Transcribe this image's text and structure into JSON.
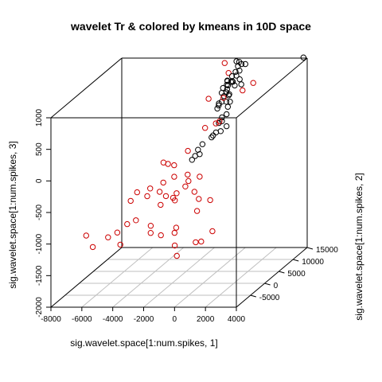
{
  "chart_data": {
    "type": "scatter",
    "title": "wavelet Tr & colored by kmeans in 10D space",
    "xlabel": "sig.wavelet.space[1:num.spikes, 1]",
    "ylabel": "sig.wavelet.space[1:num.spikes, 2]",
    "zlabel": "sig.wavelet.space[1:num.spikes, 3]",
    "xlim": [
      -8000,
      4000
    ],
    "ylim": [
      -10000,
      15000
    ],
    "zlim": [
      -2000,
      1000
    ],
    "x_ticks": [
      "-8000",
      "-6000",
      "-4000",
      "-2000",
      "0",
      "2000",
      "4000"
    ],
    "y_ticks": [
      "-5000",
      "0",
      "5000",
      "10000",
      "15000"
    ],
    "z_ticks": [
      "-2000",
      "-1500",
      "-1000",
      "-500",
      "0",
      "500",
      "1000"
    ],
    "grid": true,
    "colors": {
      "cluster_1": "#cc0000",
      "cluster_2": "#000000",
      "box": "#000000",
      "grid": "#bfbfbf"
    },
    "series": [
      {
        "color": "#cc0000",
        "points": [
          [
            -5840,
            -7000,
            -1160
          ],
          [
            -6470,
            -5900,
            -1020
          ],
          [
            -5400,
            -4000,
            -1120
          ],
          [
            -4240,
            -6000,
            -1160
          ],
          [
            -4880,
            -3600,
            -1060
          ],
          [
            -4260,
            -3500,
            -930
          ],
          [
            -3600,
            -4000,
            -850
          ],
          [
            -2750,
            -3400,
            -960
          ],
          [
            -4070,
            -1000,
            -520
          ],
          [
            -1800,
            -5000,
            -1050
          ],
          [
            -700,
            -6100,
            -1170
          ],
          [
            -1250,
            -2600,
            -1020
          ],
          [
            600,
            -5800,
            -1130
          ],
          [
            -1030,
            6400,
            220
          ],
          [
            -2780,
            1200,
            -450
          ],
          [
            -1540,
            -1500,
            -630
          ],
          [
            -1100,
            8000,
            620
          ],
          [
            -950,
            -200,
            -270
          ],
          [
            -2040,
            1000,
            -350
          ],
          [
            -1300,
            -2200,
            -490
          ],
          [
            -4800,
            700,
            -720
          ],
          [
            -1300,
            900,
            -500
          ],
          [
            -3600,
            0,
            -620
          ],
          [
            -1830,
            4700,
            -80
          ],
          [
            -480,
            7200,
            260
          ],
          [
            -3520,
            600,
            -520
          ],
          [
            -1080,
            800,
            -410
          ],
          [
            -2300,
            2400,
            -220
          ],
          [
            80,
            -2500,
            -760
          ],
          [
            630,
            -850,
            -650
          ],
          [
            -1160,
            14000,
            960
          ],
          [
            -720,
            13000,
            840
          ],
          [
            -2460,
            -1500,
            -700
          ],
          [
            -100,
            -900,
            -630
          ],
          [
            -2700,
            2400,
            -200
          ],
          [
            -2500,
            -4800,
            -1020
          ],
          [
            -1100,
            -4000,
            -1050
          ],
          [
            1460,
            -4600,
            -1000
          ],
          [
            -300,
            7500,
            280
          ],
          [
            -300,
            500,
            -330
          ],
          [
            -500,
            10000,
            560
          ],
          [
            550,
            11000,
            640
          ],
          [
            -2300,
            -500,
            -600
          ],
          [
            -2800,
            0,
            -550
          ],
          [
            -400,
            -800,
            -520
          ],
          [
            -3100,
            3000,
            -200
          ],
          [
            1060,
            12000,
            720
          ],
          [
            -1800,
            -700,
            -620
          ],
          [
            -400,
            -7000,
            -1300
          ],
          [
            900,
            -5500,
            -1130
          ]
        ]
      },
      {
        "color": "#000000",
        "points": [
          [
            -580,
            15000,
            950
          ],
          [
            -400,
            15000,
            940
          ],
          [
            -250,
            15000,
            905
          ],
          [
            -480,
            15000,
            870
          ],
          [
            -450,
            14000,
            820
          ],
          [
            0,
            15000,
            905
          ],
          [
            -200,
            14000,
            840
          ],
          [
            -500,
            13000,
            790
          ],
          [
            -700,
            12500,
            730
          ],
          [
            -400,
            12500,
            730
          ],
          [
            -800,
            11000,
            600
          ],
          [
            -580,
            12000,
            680
          ],
          [
            -350,
            12500,
            720
          ],
          [
            -650,
            12000,
            690
          ],
          [
            -800,
            13000,
            720
          ],
          [
            -560,
            13000,
            700
          ],
          [
            0,
            13000,
            740
          ],
          [
            -900,
            12000,
            640
          ],
          [
            -500,
            11000,
            610
          ],
          [
            -140,
            12000,
            680
          ],
          [
            -400,
            14000,
            760
          ],
          [
            -630,
            12000,
            620
          ],
          [
            -800,
            10000,
            470
          ],
          [
            -350,
            11000,
            560
          ],
          [
            -650,
            11000,
            550
          ],
          [
            -400,
            11500,
            560
          ],
          [
            100,
            13000,
            660
          ],
          [
            -800,
            11000,
            460
          ],
          [
            -260,
            11000,
            460
          ],
          [
            -500,
            11000,
            460
          ],
          [
            -900,
            10500,
            420
          ],
          [
            -900,
            10000,
            390
          ],
          [
            -400,
            11000,
            380
          ],
          [
            -300,
            10000,
            300
          ],
          [
            -600,
            10000,
            250
          ],
          [
            -600,
            10000,
            190
          ],
          [
            -800,
            10000,
            160
          ],
          [
            -300,
            10000,
            110
          ],
          [
            -500,
            9000,
            70
          ],
          [
            -800,
            9000,
            50
          ],
          [
            -900,
            8500,
            20
          ],
          [
            -1000,
            8500,
            -10
          ],
          [
            -1400,
            7500,
            -80
          ],
          [
            -1600,
            7000,
            -150
          ],
          [
            -1400,
            6500,
            -200
          ],
          [
            -1600,
            6000,
            -210
          ],
          [
            -1800,
            6000,
            -270
          ],
          [
            3760,
            15000,
            1010
          ]
        ]
      }
    ]
  }
}
